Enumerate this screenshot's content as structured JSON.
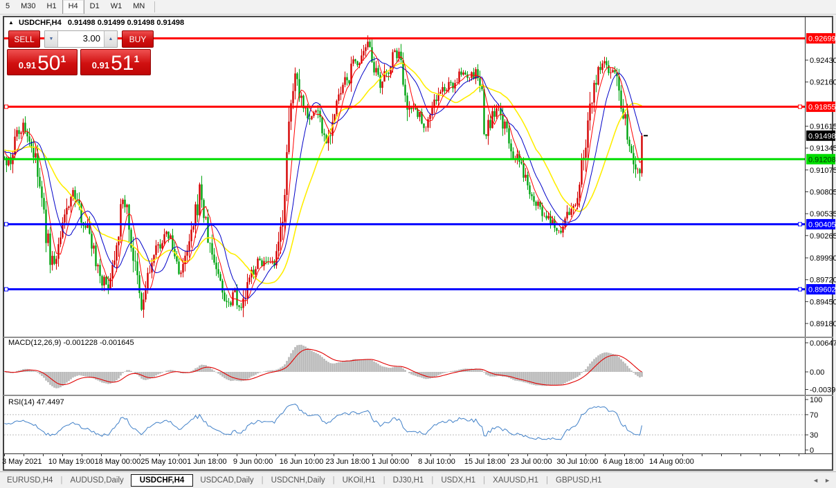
{
  "toolbar": {
    "timeframes": [
      {
        "label": "5",
        "active": false
      },
      {
        "label": "M30",
        "active": false
      },
      {
        "label": "H1",
        "active": false
      },
      {
        "label": "H4",
        "active": true
      },
      {
        "label": "D1",
        "active": false
      },
      {
        "label": "W1",
        "active": false
      },
      {
        "label": "MN",
        "active": false
      }
    ]
  },
  "chart": {
    "collapse_icon": "▲",
    "title_symbol": "USDCHF,H4",
    "title_ohlc": "0.91498 0.91499 0.91498 0.91498",
    "trade_panel": {
      "sell_label": "SELL",
      "buy_label": "BUY",
      "volume": "3.00",
      "spin_down_icon": "▼",
      "spin_up_icon": "▲",
      "sell_price_small": "0.91",
      "sell_price_big": "50",
      "sell_price_sup": "1",
      "buy_price_small": "0.91",
      "buy_price_big": "51",
      "buy_price_sup": "1"
    }
  },
  "chart_data": {
    "type": "candlestick-with-indicators",
    "symbol": "USDCHF",
    "timeframe": "H4",
    "ohlc": {
      "open": 0.91498,
      "high": 0.91499,
      "low": 0.91498,
      "close": 0.91498
    },
    "bid": "0.9150",
    "ask": "0.9151",
    "colors": {
      "candle_up": "#d40000",
      "candle_down": "#00a410",
      "ma_fast": "#ff0000",
      "ma_mid": "#0000c8",
      "ma_slow": "#ffee00",
      "line_red": "#ff0000",
      "line_green": "#00dd00",
      "line_blue": "#0000ff",
      "macd_hist": "#b8b8b8",
      "macd_signal": "#e00000",
      "rsi_line": "#4080c8"
    },
    "price_axis_ticks": [
      "0.92430",
      "0.92160",
      "0.91615",
      "0.91345",
      "0.91075",
      "0.90805",
      "0.90535",
      "0.90265",
      "0.89990",
      "0.89720",
      "0.89450",
      "0.89180"
    ],
    "price_badges": [
      {
        "label": "0.92699",
        "price": 0.92699,
        "bg": "#ff0000",
        "fg": "#ffffff"
      },
      {
        "label": "0.91855",
        "price": 0.91855,
        "bg": "#ff0000",
        "fg": "#ffffff"
      },
      {
        "label": "0.91498",
        "price": 0.91498,
        "bg": "#000000",
        "fg": "#ffffff"
      },
      {
        "label": "0.91208",
        "price": 0.91208,
        "bg": "#00dd00",
        "fg": "#003300"
      },
      {
        "label": "0.90405",
        "price": 0.90405,
        "bg": "#0000ff",
        "fg": "#ffffff"
      },
      {
        "label": "0.89602",
        "price": 0.89602,
        "bg": "#0000ff",
        "fg": "#ffffff"
      }
    ],
    "hlines": [
      {
        "price": 0.92699,
        "color": "#ff0000",
        "width": 3,
        "handles": false,
        "name": "resistance-0.92699"
      },
      {
        "price": 0.91855,
        "color": "#ff0000",
        "width": 3,
        "handles": true,
        "name": "resistance-0.91855"
      },
      {
        "price": 0.91208,
        "color": "#00dd00",
        "width": 3,
        "handles": false,
        "name": "support-0.91208"
      },
      {
        "price": 0.90405,
        "color": "#0000ff",
        "width": 3,
        "handles": true,
        "name": "support-0.90405"
      },
      {
        "price": 0.89602,
        "color": "#0000ff",
        "width": 3,
        "handles": true,
        "name": "support-0.89602"
      }
    ],
    "current_price": {
      "label": "0.91498",
      "price": 0.91498
    },
    "close_path": [
      [
        6,
        0.9128
      ],
      [
        14,
        0.9112
      ],
      [
        22,
        0.9148
      ],
      [
        32,
        0.9163
      ],
      [
        40,
        0.915
      ],
      [
        48,
        0.9128
      ],
      [
        56,
        0.9092
      ],
      [
        64,
        0.904
      ],
      [
        72,
        0.9
      ],
      [
        80,
        0.8993
      ],
      [
        88,
        0.9025
      ],
      [
        98,
        0.9068
      ],
      [
        106,
        0.908
      ],
      [
        114,
        0.9058
      ],
      [
        122,
        0.9042
      ],
      [
        130,
        0.9028
      ],
      [
        138,
        0.8998
      ],
      [
        146,
        0.8975
      ],
      [
        154,
        0.8963
      ],
      [
        162,
        0.899
      ],
      [
        172,
        0.9045
      ],
      [
        179,
        0.9075
      ],
      [
        186,
        0.9038
      ],
      [
        194,
        0.8988
      ],
      [
        204,
        0.8933
      ],
      [
        212,
        0.8972
      ],
      [
        222,
        0.9
      ],
      [
        232,
        0.902
      ],
      [
        244,
        0.9028
      ],
      [
        252,
        0.9
      ],
      [
        262,
        0.8978
      ],
      [
        272,
        0.9012
      ],
      [
        280,
        0.9038
      ],
      [
        289,
        0.909
      ],
      [
        296,
        0.904
      ],
      [
        304,
        0.9008
      ],
      [
        312,
        0.8988
      ],
      [
        322,
        0.8955
      ],
      [
        330,
        0.8943
      ],
      [
        338,
        0.8963
      ],
      [
        348,
        0.8934
      ],
      [
        356,
        0.896
      ],
      [
        366,
        0.8986
      ],
      [
        376,
        0.8996
      ],
      [
        388,
        0.8988
      ],
      [
        398,
        0.8992
      ],
      [
        404,
        0.902
      ],
      [
        410,
        0.9078
      ],
      [
        416,
        0.914
      ],
      [
        421,
        0.9195
      ],
      [
        428,
        0.9233
      ],
      [
        434,
        0.9198
      ],
      [
        442,
        0.918
      ],
      [
        450,
        0.9172
      ],
      [
        458,
        0.9185
      ],
      [
        466,
        0.9152
      ],
      [
        472,
        0.9144
      ],
      [
        480,
        0.9168
      ],
      [
        488,
        0.9192
      ],
      [
        496,
        0.9212
      ],
      [
        504,
        0.9222
      ],
      [
        512,
        0.9244
      ],
      [
        520,
        0.9238
      ],
      [
        528,
        0.9252
      ],
      [
        535,
        0.9266
      ],
      [
        542,
        0.9225
      ],
      [
        550,
        0.9205
      ],
      [
        558,
        0.9228
      ],
      [
        566,
        0.9246
      ],
      [
        574,
        0.9252
      ],
      [
        580,
        0.9235
      ],
      [
        586,
        0.9205
      ],
      [
        592,
        0.9178
      ],
      [
        600,
        0.9188
      ],
      [
        608,
        0.9168
      ],
      [
        616,
        0.9162
      ],
      [
        624,
        0.9188
      ],
      [
        632,
        0.9198
      ],
      [
        642,
        0.9208
      ],
      [
        652,
        0.9212
      ],
      [
        662,
        0.9222
      ],
      [
        672,
        0.9227
      ],
      [
        680,
        0.9222
      ],
      [
        688,
        0.9228
      ],
      [
        695,
        0.9205
      ],
      [
        700,
        0.9145
      ],
      [
        708,
        0.9168
      ],
      [
        716,
        0.9182
      ],
      [
        724,
        0.9172
      ],
      [
        732,
        0.915
      ],
      [
        740,
        0.9128
      ],
      [
        748,
        0.9118
      ],
      [
        756,
        0.9102
      ],
      [
        764,
        0.9088
      ],
      [
        772,
        0.9074
      ],
      [
        780,
        0.9058
      ],
      [
        788,
        0.9048
      ],
      [
        796,
        0.904
      ],
      [
        804,
        0.9036
      ],
      [
        812,
        0.9034
      ],
      [
        820,
        0.9052
      ],
      [
        828,
        0.9062
      ],
      [
        836,
        0.9082
      ],
      [
        842,
        0.9122
      ],
      [
        848,
        0.9162
      ],
      [
        854,
        0.9198
      ],
      [
        860,
        0.9218
      ],
      [
        866,
        0.923
      ],
      [
        872,
        0.9242
      ],
      [
        878,
        0.9228
      ],
      [
        884,
        0.9236
      ],
      [
        890,
        0.9224
      ],
      [
        896,
        0.9198
      ],
      [
        902,
        0.9175
      ],
      [
        908,
        0.9148
      ],
      [
        914,
        0.9128
      ],
      [
        918,
        0.9112
      ],
      [
        922,
        0.9102
      ],
      [
        927,
        0.915
      ]
    ],
    "moving_averages": [
      {
        "period": 6,
        "color": "#ff0000",
        "width": 1
      },
      {
        "period": 13,
        "color": "#0000c8",
        "width": 1
      },
      {
        "period": 26,
        "color": "#ffee00",
        "width": 1.6
      }
    ],
    "macd": {
      "label": "MACD(12,26,9) -0.001228 -0.001645",
      "value_main": -0.001228,
      "value_signal": -0.001645,
      "fast": 12,
      "slow": 26,
      "signal": 9,
      "axis": [
        {
          "label": "0.00647",
          "value": 0.00647
        },
        {
          "label": "0.00",
          "value": 0.0
        },
        {
          "label": "-0.003916",
          "value": -0.003916
        }
      ]
    },
    "rsi": {
      "label": "RSI(14) 47.4497",
      "value": 47.4497,
      "period": 14,
      "levels": [
        70,
        30
      ],
      "axis": [
        {
          "label": "100",
          "value": 100
        },
        {
          "label": "70",
          "value": 70
        },
        {
          "label": "30",
          "value": 30
        },
        {
          "label": "0",
          "value": 0
        }
      ]
    },
    "date_labels": [
      "3 May 2021",
      "10 May 19:00",
      "18 May 00:00",
      "25 May 10:00",
      "1 Jun 18:00",
      "9 Jun 00:00",
      "16 Jun 10:00",
      "23 Jun 18:00",
      "1 Jul 00:00",
      "8 Jul 10:00",
      "15 Jul 18:00",
      "23 Jul 00:00",
      "30 Jul 10:00",
      "6 Aug 18:00",
      "14 Aug 00:00"
    ]
  },
  "tabs": {
    "items": [
      {
        "label": "EURUSD,H4",
        "active": false
      },
      {
        "label": "AUDUSD,Daily",
        "active": false
      },
      {
        "label": "USDCHF,H4",
        "active": true
      },
      {
        "label": "USDCAD,Daily",
        "active": false
      },
      {
        "label": "USDCNH,Daily",
        "active": false
      },
      {
        "label": "UKOil,H1",
        "active": false
      },
      {
        "label": "DJ30,H1",
        "active": false
      },
      {
        "label": "USDX,H1",
        "active": false
      },
      {
        "label": "XAUUSD,H1",
        "active": false
      },
      {
        "label": "GBPUSD,H1",
        "active": false
      }
    ],
    "scroll_left_icon": "◄",
    "scroll_right_icon": "►"
  }
}
